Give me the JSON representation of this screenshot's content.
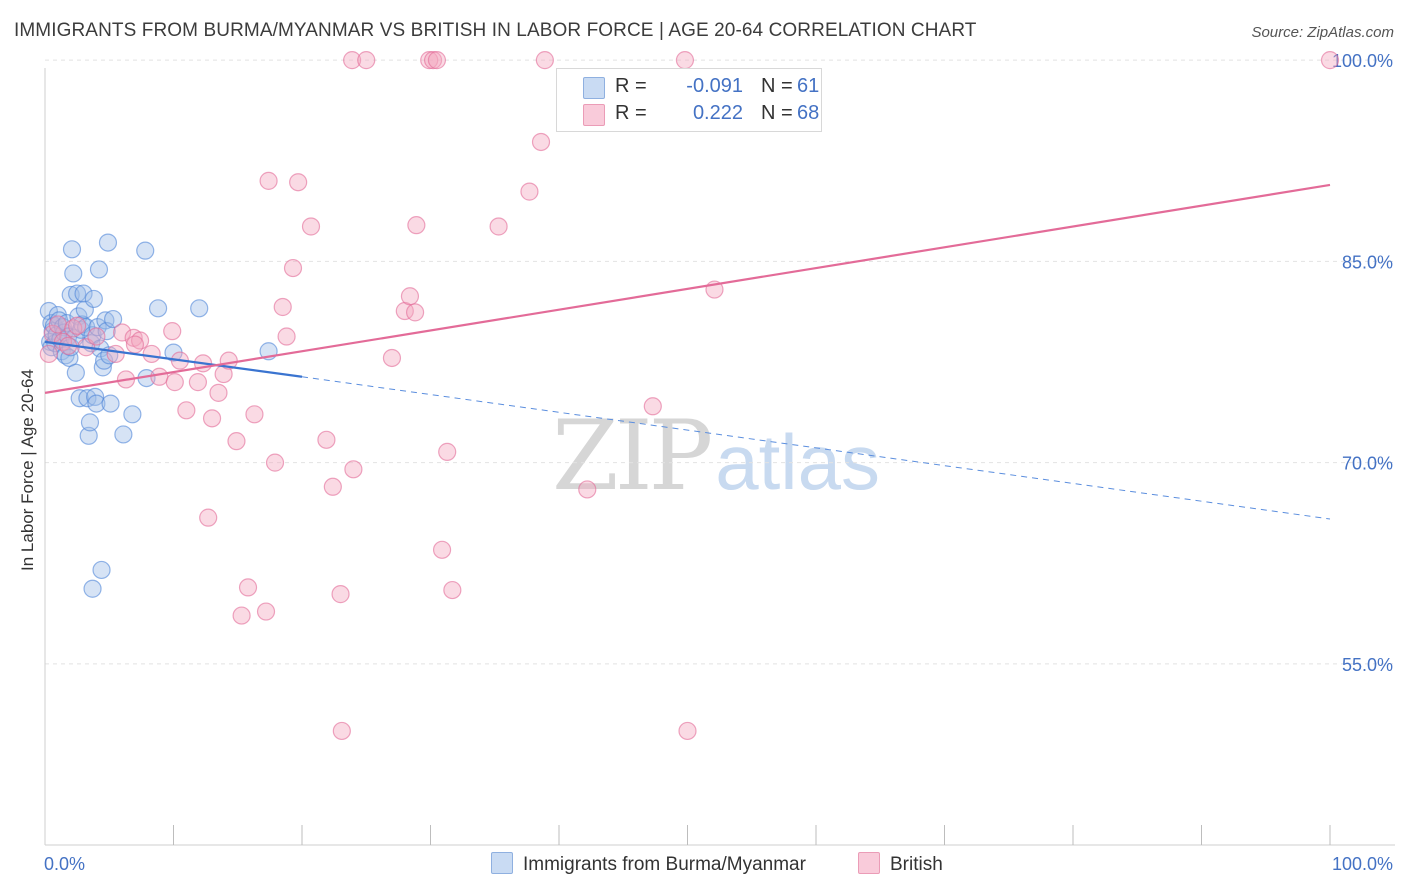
{
  "header": {
    "title": "IMMIGRANTS FROM BURMA/MYANMAR VS BRITISH IN LABOR FORCE | AGE 20-64 CORRELATION CHART",
    "source": "Source: ZipAtlas.com"
  },
  "watermark": {
    "zip": "ZIP",
    "atlas": "atlas"
  },
  "legend": {
    "rows": [
      {
        "r_label": "R =",
        "r_value": "-0.091",
        "n_label": "N =",
        "n_value": "61",
        "color": "#9dbde8"
      },
      {
        "r_label": "R =",
        "r_value": "0.222",
        "n_label": "N =",
        "n_value": "68",
        "color": "#f4a7bf"
      }
    ]
  },
  "bottom_legend": {
    "items": [
      {
        "label": "Immigrants from Burma/Myanmar",
        "color": "#9dbde8"
      },
      {
        "label": "British",
        "color": "#f4a7bf"
      }
    ]
  },
  "chart_data": {
    "type": "scatter",
    "title": "IMMIGRANTS FROM BURMA/MYANMAR VS BRITISH IN LABOR FORCE | AGE 20-64 CORRELATION CHART",
    "xlabel": "",
    "ylabel": "In Labor Force | Age 20-64",
    "xlim": [
      0,
      100
    ],
    "ylim": [
      41.5,
      101.5
    ],
    "x_tick_labels": [
      "0.0%",
      "100.0%"
    ],
    "y_ticks": [
      55,
      70,
      85,
      100
    ],
    "y_tick_labels": [
      "55.0%",
      "70.0%",
      "85.0%",
      "100.0%"
    ],
    "grid": true,
    "series": [
      {
        "name": "Immigrants from Burma/Myanmar",
        "color": "#4f86d9",
        "fill": "#9dbde8",
        "r": -0.091,
        "n": 61,
        "trend": {
          "x0": 0,
          "y0": 79.0,
          "x1": 20,
          "y1": 76.4,
          "dash_x1": 100,
          "dash_y1": 65.8
        },
        "points": [
          [
            0.3,
            81.3
          ],
          [
            0.4,
            79.0
          ],
          [
            0.5,
            80.4
          ],
          [
            0.5,
            78.6
          ],
          [
            0.6,
            79.8
          ],
          [
            0.7,
            80.2
          ],
          [
            0.8,
            78.9
          ],
          [
            0.9,
            79.5
          ],
          [
            1.0,
            81.0
          ],
          [
            1.1,
            80.6
          ],
          [
            1.2,
            79.2
          ],
          [
            1.3,
            78.3
          ],
          [
            1.4,
            80.1
          ],
          [
            1.5,
            79.7
          ],
          [
            1.6,
            78.0
          ],
          [
            1.7,
            80.4
          ],
          [
            1.8,
            79.4
          ],
          [
            1.9,
            77.8
          ],
          [
            2.0,
            82.5
          ],
          [
            2.0,
            78.6
          ],
          [
            2.1,
            85.9
          ],
          [
            2.2,
            84.1
          ],
          [
            2.3,
            79.3
          ],
          [
            2.4,
            76.7
          ],
          [
            2.5,
            82.6
          ],
          [
            2.6,
            80.9
          ],
          [
            2.7,
            74.8
          ],
          [
            2.8,
            79.9
          ],
          [
            2.9,
            80.3
          ],
          [
            3.0,
            82.6
          ],
          [
            3.1,
            81.4
          ],
          [
            3.2,
            80.1
          ],
          [
            3.3,
            74.8
          ],
          [
            3.4,
            72.0
          ],
          [
            3.5,
            73.0
          ],
          [
            3.6,
            78.9
          ],
          [
            3.7,
            79.5
          ],
          [
            3.8,
            82.2
          ],
          [
            3.9,
            74.9
          ],
          [
            4.0,
            74.4
          ],
          [
            4.1,
            80.1
          ],
          [
            4.2,
            84.4
          ],
          [
            4.3,
            78.5
          ],
          [
            4.4,
            62.0
          ],
          [
            4.5,
            77.1
          ],
          [
            4.6,
            77.6
          ],
          [
            4.7,
            80.6
          ],
          [
            4.8,
            79.8
          ],
          [
            4.9,
            86.4
          ],
          [
            5.0,
            78.0
          ],
          [
            5.1,
            74.4
          ],
          [
            5.3,
            80.7
          ],
          [
            6.1,
            72.1
          ],
          [
            6.8,
            73.6
          ],
          [
            7.8,
            85.8
          ],
          [
            7.9,
            76.3
          ],
          [
            8.8,
            81.5
          ],
          [
            10.0,
            78.2
          ],
          [
            12.0,
            81.5
          ],
          [
            17.4,
            78.3
          ],
          [
            3.7,
            60.6
          ]
        ]
      },
      {
        "name": "British",
        "color": "#e36b98",
        "fill": "#f4a7bf",
        "r": 0.222,
        "n": 68,
        "trend": {
          "x0": 0,
          "y0": 75.2,
          "x1": 100,
          "y1": 90.7
        },
        "points": [
          [
            0.3,
            78.1
          ],
          [
            0.6,
            79.6
          ],
          [
            1.0,
            80.3
          ],
          [
            1.4,
            79.0
          ],
          [
            1.8,
            78.7
          ],
          [
            2.2,
            80.0
          ],
          [
            3.2,
            78.6
          ],
          [
            4.0,
            79.4
          ],
          [
            5.5,
            78.1
          ],
          [
            6.0,
            79.7
          ],
          [
            6.3,
            76.2
          ],
          [
            6.9,
            79.3
          ],
          [
            7.4,
            79.1
          ],
          [
            8.3,
            78.1
          ],
          [
            8.9,
            76.4
          ],
          [
            9.9,
            79.8
          ],
          [
            10.1,
            76.0
          ],
          [
            10.5,
            77.6
          ],
          [
            11.0,
            73.9
          ],
          [
            11.9,
            76.0
          ],
          [
            12.3,
            77.4
          ],
          [
            12.7,
            65.9
          ],
          [
            13.0,
            73.3
          ],
          [
            13.9,
            76.6
          ],
          [
            14.3,
            77.6
          ],
          [
            14.9,
            71.6
          ],
          [
            15.8,
            60.7
          ],
          [
            15.3,
            58.6
          ],
          [
            16.3,
            73.6
          ],
          [
            17.2,
            58.9
          ],
          [
            17.4,
            91.0
          ],
          [
            17.9,
            70.0
          ],
          [
            18.5,
            81.6
          ],
          [
            18.8,
            79.4
          ],
          [
            19.3,
            84.5
          ],
          [
            19.7,
            90.9
          ],
          [
            20.7,
            87.6
          ],
          [
            21.9,
            71.7
          ],
          [
            22.4,
            68.2
          ],
          [
            23.0,
            60.2
          ],
          [
            23.1,
            50.0
          ],
          [
            23.9,
            100.0
          ],
          [
            24.0,
            69.5
          ],
          [
            25.0,
            100.0
          ],
          [
            27.0,
            77.8
          ],
          [
            28.0,
            81.3
          ],
          [
            28.4,
            82.4
          ],
          [
            28.8,
            81.2
          ],
          [
            28.9,
            87.7
          ],
          [
            29.9,
            100.0
          ],
          [
            30.2,
            100.0
          ],
          [
            30.5,
            100.0
          ],
          [
            30.9,
            63.5
          ],
          [
            31.3,
            70.8
          ],
          [
            31.7,
            60.5
          ],
          [
            35.3,
            87.6
          ],
          [
            37.7,
            90.2
          ],
          [
            38.6,
            93.9
          ],
          [
            38.9,
            100.0
          ],
          [
            42.2,
            68.0
          ],
          [
            47.3,
            74.2
          ],
          [
            49.8,
            100.0
          ],
          [
            50.0,
            50.0
          ],
          [
            52.1,
            82.9
          ],
          [
            100.0,
            100.0
          ],
          [
            2.5,
            80.2
          ],
          [
            7.0,
            78.8
          ],
          [
            13.5,
            75.2
          ]
        ]
      }
    ]
  }
}
